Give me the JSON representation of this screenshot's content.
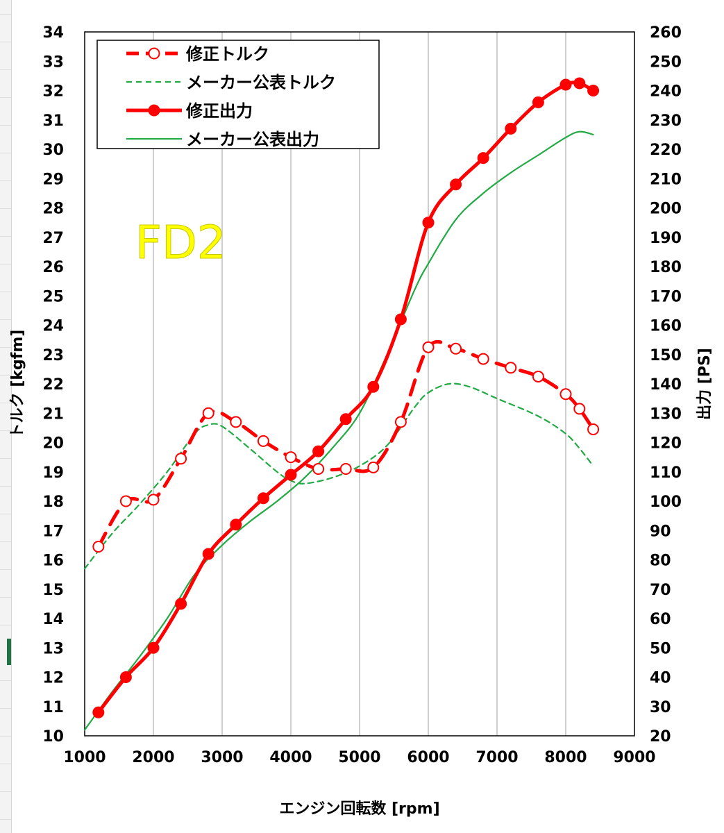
{
  "chart_data": {
    "type": "line",
    "xlabel": "エンジン回転数 [rpm]",
    "ylabel_left": "トルク [kgfm]",
    "ylabel_right": "出力 [PS]",
    "xlim": [
      1000,
      9000
    ],
    "ylim_left": [
      10,
      34
    ],
    "ylim_right": [
      20,
      260
    ],
    "xticks": [
      "1000",
      "2000",
      "3000",
      "4000",
      "5000",
      "6000",
      "7000",
      "8000",
      "9000"
    ],
    "yticks_left": [
      "10",
      "11",
      "12",
      "13",
      "14",
      "15",
      "16",
      "17",
      "18",
      "19",
      "20",
      "21",
      "22",
      "23",
      "24",
      "25",
      "26",
      "27",
      "28",
      "29",
      "30",
      "31",
      "32",
      "33",
      "34"
    ],
    "yticks_right": [
      "20",
      "30",
      "40",
      "50",
      "60",
      "70",
      "80",
      "90",
      "100",
      "110",
      "120",
      "130",
      "140",
      "150",
      "160",
      "170",
      "180",
      "190",
      "200",
      "210",
      "220",
      "230",
      "240",
      "250",
      "260"
    ],
    "grid": "vertical",
    "legend_position": "top-left",
    "annotation": "FD2",
    "series": [
      {
        "name": "修正トルク",
        "axis": "left",
        "style": "dashed-open-markers",
        "color": "#ff0000",
        "points": [
          [
            1200,
            16.45
          ],
          [
            1600,
            18.0
          ],
          [
            2000,
            18.05
          ],
          [
            2400,
            19.45
          ],
          [
            2800,
            21.0
          ],
          [
            3200,
            20.7
          ],
          [
            3600,
            20.05
          ],
          [
            4000,
            19.5
          ],
          [
            4400,
            19.1
          ],
          [
            4800,
            19.1
          ],
          [
            5200,
            19.15
          ],
          [
            5600,
            20.7
          ],
          [
            6000,
            23.25
          ],
          [
            6400,
            23.2
          ],
          [
            6800,
            22.85
          ],
          [
            7200,
            22.55
          ],
          [
            7600,
            22.25
          ],
          [
            8000,
            21.65
          ],
          [
            8200,
            21.15
          ],
          [
            8400,
            20.45
          ]
        ]
      },
      {
        "name": "メーカー公表トルク",
        "axis": "left",
        "style": "dashed",
        "color": "#22aa44",
        "points": [
          [
            1000,
            15.7
          ],
          [
            1400,
            16.9
          ],
          [
            1800,
            17.9
          ],
          [
            2200,
            19.0
          ],
          [
            2600,
            20.3
          ],
          [
            2800,
            20.6
          ],
          [
            3000,
            20.55
          ],
          [
            3400,
            19.8
          ],
          [
            3800,
            19.0
          ],
          [
            4000,
            18.7
          ],
          [
            4200,
            18.6
          ],
          [
            4600,
            18.8
          ],
          [
            5000,
            19.2
          ],
          [
            5400,
            19.9
          ],
          [
            5800,
            21.2
          ],
          [
            6000,
            21.7
          ],
          [
            6300,
            22.0
          ],
          [
            6600,
            21.9
          ],
          [
            7000,
            21.5
          ],
          [
            7600,
            20.9
          ],
          [
            8000,
            20.3
          ],
          [
            8200,
            19.8
          ],
          [
            8400,
            19.2
          ]
        ]
      },
      {
        "name": "修正出力",
        "axis": "right",
        "style": "solid-filled-markers",
        "color": "#ff0000",
        "points": [
          [
            1200,
            28
          ],
          [
            1600,
            40
          ],
          [
            2000,
            50
          ],
          [
            2400,
            65
          ],
          [
            2800,
            82
          ],
          [
            3200,
            92
          ],
          [
            3600,
            101
          ],
          [
            4000,
            109
          ],
          [
            4400,
            117
          ],
          [
            4800,
            128
          ],
          [
            5200,
            139
          ],
          [
            5600,
            162
          ],
          [
            6000,
            195
          ],
          [
            6400,
            208
          ],
          [
            6800,
            217
          ],
          [
            7200,
            227
          ],
          [
            7600,
            236
          ],
          [
            8000,
            242
          ],
          [
            8200,
            242.5
          ],
          [
            8400,
            240
          ]
        ]
      },
      {
        "name": "メーカー公表出力",
        "axis": "right",
        "style": "solid",
        "color": "#22aa44",
        "points": [
          [
            1000,
            22
          ],
          [
            1400,
            35
          ],
          [
            1800,
            47
          ],
          [
            2200,
            60
          ],
          [
            2600,
            75
          ],
          [
            3000,
            85
          ],
          [
            3400,
            93
          ],
          [
            3800,
            100
          ],
          [
            4200,
            108
          ],
          [
            4600,
            118
          ],
          [
            5000,
            130
          ],
          [
            5400,
            150
          ],
          [
            5800,
            172
          ],
          [
            6000,
            181
          ],
          [
            6400,
            196
          ],
          [
            6800,
            205
          ],
          [
            7200,
            212
          ],
          [
            7600,
            218
          ],
          [
            8000,
            224
          ],
          [
            8200,
            226
          ],
          [
            8400,
            225
          ]
        ]
      }
    ]
  }
}
